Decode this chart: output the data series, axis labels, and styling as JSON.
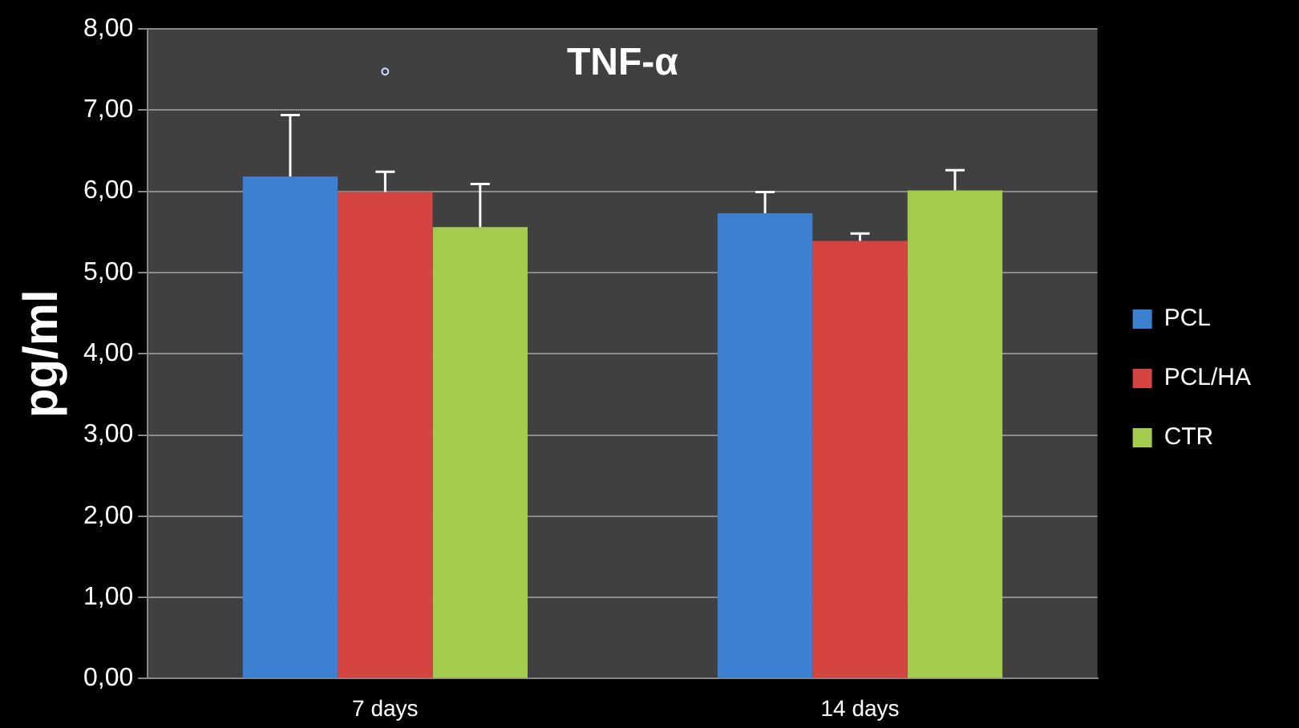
{
  "chart_data": {
    "type": "bar",
    "title": "TNF-α",
    "ylabel": "pg/ml",
    "categories": [
      "7 days",
      "14 days"
    ],
    "series": [
      {
        "name": "PCL",
        "color": "#3d7fd0",
        "values": [
          6.18,
          5.73
        ],
        "errors": [
          0.76,
          0.26
        ]
      },
      {
        "name": "PCL/HA",
        "color": "#d64441",
        "values": [
          5.99,
          5.39
        ],
        "errors": [
          0.25,
          0.09
        ]
      },
      {
        "name": "CTR",
        "color": "#a3cc4f",
        "values": [
          5.56,
          6.01
        ],
        "errors": [
          0.53,
          0.25
        ]
      }
    ],
    "ylim": [
      0,
      8
    ],
    "yticks": [
      {
        "value": 0,
        "label": "0,00"
      },
      {
        "value": 1,
        "label": "1,00"
      },
      {
        "value": 2,
        "label": "2,00"
      },
      {
        "value": 3,
        "label": "3,00"
      },
      {
        "value": 4,
        "label": "4,00"
      },
      {
        "value": 5,
        "label": "5,00"
      },
      {
        "value": 6,
        "label": "6,00"
      },
      {
        "value": 7,
        "label": "7,00"
      },
      {
        "value": 8,
        "label": "8,00"
      }
    ],
    "grid": "y",
    "legend": "right",
    "annotations": [
      "°"
    ]
  }
}
